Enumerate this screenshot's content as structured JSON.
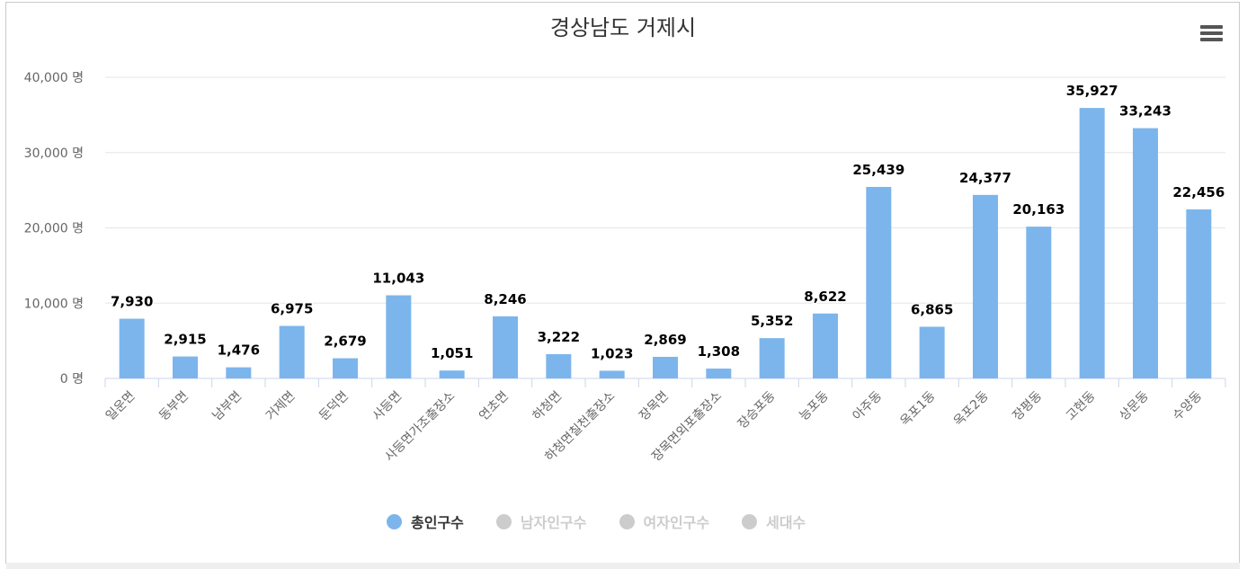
{
  "chart_data": {
    "type": "bar",
    "title": "경상남도 거제시",
    "categories": [
      "일운면",
      "동부면",
      "남부면",
      "거제면",
      "둔덕면",
      "사등면",
      "사등면가조출장소",
      "연초면",
      "하청면",
      "하청면칠천출장소",
      "장목면",
      "장목면외포출장소",
      "장승포동",
      "능포동",
      "아주동",
      "옥포1동",
      "옥포2동",
      "장평동",
      "고현동",
      "상문동",
      "수양동"
    ],
    "series": [
      {
        "name": "총인구수",
        "values": [
          7930,
          2915,
          1476,
          6975,
          2679,
          11043,
          1051,
          8246,
          3222,
          1023,
          2869,
          1308,
          5352,
          8622,
          25439,
          6865,
          24377,
          20163,
          35927,
          33243,
          22456
        ]
      }
    ],
    "data_labels": [
      "7,930",
      "2,915",
      "1,476",
      "6,975",
      "2,679",
      "11,043",
      "1,051",
      "8,246",
      "3,222",
      "1,023",
      "2,869",
      "1,308",
      "5,352",
      "8,622",
      "25,439",
      "6,865",
      "24,377",
      "20,163",
      "35,927",
      "33,243",
      "22,456"
    ],
    "ylim": [
      0,
      40000
    ],
    "y_ticks": [
      0,
      10000,
      20000,
      30000,
      40000
    ],
    "y_tick_labels": [
      "0 명",
      "10,000 명",
      "20,000 명",
      "30,000 명",
      "40,000 명"
    ],
    "xlabel": "",
    "ylabel": "",
    "grid": true,
    "legend": {
      "placement": "bottom",
      "items": [
        {
          "label": "총인구수",
          "active": true
        },
        {
          "label": "남자인구수",
          "active": false
        },
        {
          "label": "여자인구수",
          "active": false
        },
        {
          "label": "세대수",
          "active": false
        }
      ]
    }
  },
  "colors": {
    "bar": "#7cb5ec",
    "grid": "#e6e6e6",
    "axis": "#ccd6eb",
    "title": "#333333",
    "tick_text": "#666666",
    "label_text": "#000000",
    "legend_active_text": "#333333",
    "legend_inactive": "#cccccc",
    "menu_icon": "#555555"
  },
  "icons": {
    "menu": "hamburger-menu-icon"
  }
}
